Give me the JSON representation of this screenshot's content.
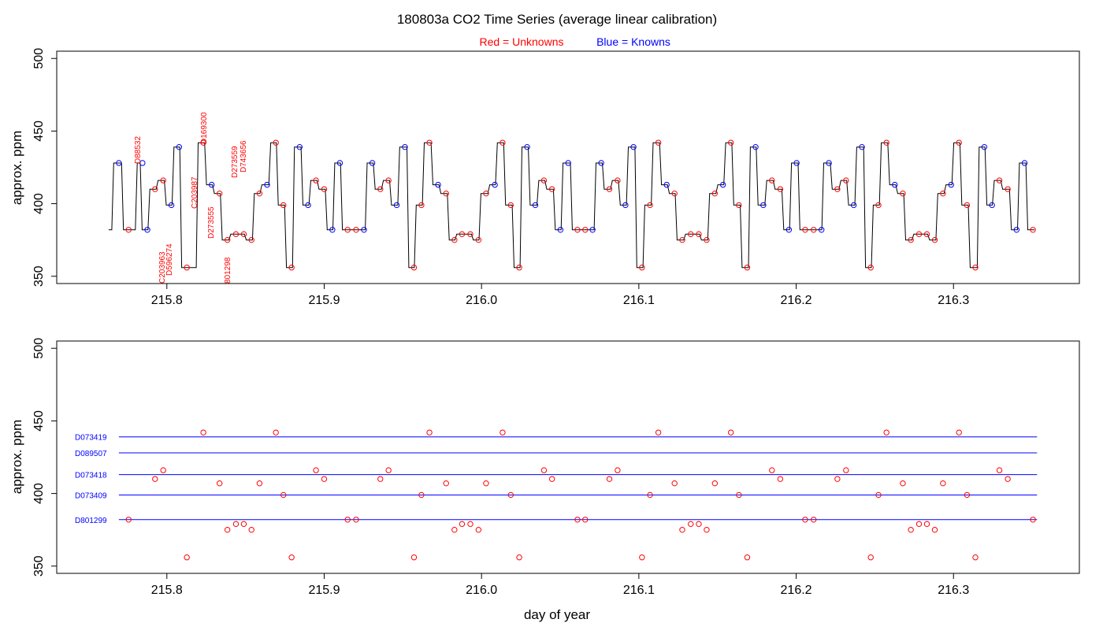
{
  "title": "180803a   CO2 Time Series (average linear calibration)",
  "legend": {
    "unknowns": "Red = Unknowns",
    "knowns": "Blue = Knowns",
    "unknowns_color": "#ff0000",
    "knowns_color": "#0000ff"
  },
  "chart_data": [
    {
      "type": "line",
      "panel": "top",
      "title": "",
      "xlabel": "",
      "ylabel": "approx. ppm",
      "xlim": [
        215.73,
        216.38
      ],
      "ylim": [
        345,
        505
      ],
      "xticks": [
        215.8,
        215.9,
        216.0,
        216.1,
        216.2,
        216.3
      ],
      "xtick_labels": [
        "215.8",
        "215.9",
        "216.0",
        "216.1",
        "216.2",
        "216.3"
      ],
      "yticks": [
        350,
        400,
        450,
        500
      ],
      "ytick_labels": [
        "350",
        "400",
        "450",
        "500"
      ],
      "grid": false,
      "colors": {
        "line": "#000000",
        "unknown": "#ff0000",
        "known": "#0000ff"
      },
      "series": [
        {
          "name": "Unknowns",
          "points": [
            [
              215.7757,
              382
            ],
            [
              215.7925,
              410
            ],
            [
              215.7977,
              416
            ],
            [
              215.8127,
              356
            ],
            [
              215.8232,
              442
            ],
            [
              215.8335,
              407
            ],
            [
              215.8385,
              375
            ],
            [
              215.8439,
              379
            ],
            [
              215.8489,
              379
            ],
            [
              215.8538,
              375
            ],
            [
              215.8589,
              407
            ],
            [
              215.8693,
              442
            ],
            [
              215.8741,
              399
            ],
            [
              215.8793,
              356
            ],
            [
              215.8948,
              416
            ],
            [
              215.9,
              410
            ],
            [
              215.9149,
              382
            ],
            [
              215.9203,
              382
            ],
            [
              215.9357,
              410
            ],
            [
              215.9409,
              416
            ],
            [
              215.9571,
              356
            ],
            [
              215.9618,
              399
            ],
            [
              215.9669,
              442
            ],
            [
              215.9775,
              407
            ],
            [
              215.9828,
              375
            ],
            [
              215.9876,
              379
            ],
            [
              215.9929,
              379
            ],
            [
              215.9981,
              375
            ],
            [
              216.0029,
              407
            ],
            [
              216.0134,
              442
            ],
            [
              216.0186,
              399
            ],
            [
              216.024,
              356
            ],
            [
              216.0397,
              416
            ],
            [
              216.0448,
              410
            ],
            [
              216.061,
              382
            ],
            [
              216.0659,
              382
            ],
            [
              216.0813,
              410
            ],
            [
              216.0865,
              416
            ],
            [
              216.102,
              356
            ],
            [
              216.1071,
              399
            ],
            [
              216.1124,
              442
            ],
            [
              216.1227,
              407
            ],
            [
              216.1276,
              375
            ],
            [
              216.133,
              379
            ],
            [
              216.1381,
              379
            ],
            [
              216.1431,
              375
            ],
            [
              216.1483,
              407
            ],
            [
              216.1585,
              442
            ],
            [
              216.1636,
              399
            ],
            [
              216.1689,
              356
            ],
            [
              216.1846,
              416
            ],
            [
              216.1899,
              410
            ],
            [
              216.2057,
              382
            ],
            [
              216.2111,
              382
            ],
            [
              216.2262,
              410
            ],
            [
              216.2317,
              416
            ],
            [
              216.2474,
              356
            ],
            [
              216.2523,
              399
            ],
            [
              216.2574,
              442
            ],
            [
              216.2678,
              407
            ],
            [
              216.2729,
              375
            ],
            [
              216.2781,
              379
            ],
            [
              216.2831,
              379
            ],
            [
              216.2881,
              375
            ],
            [
              216.2933,
              407
            ],
            [
              216.3035,
              442
            ],
            [
              216.3086,
              399
            ],
            [
              216.3139,
              356
            ],
            [
              216.3292,
              416
            ],
            [
              216.3345,
              410
            ],
            [
              216.3505,
              382
            ]
          ]
        },
        {
          "name": "Knowns",
          "points": [
            [
              215.7695,
              428
            ],
            [
              215.7845,
              428
            ],
            [
              215.7876,
              382
            ],
            [
              215.8029,
              399
            ],
            [
              215.8078,
              439
            ],
            [
              215.8285,
              413
            ],
            [
              215.8637,
              413
            ],
            [
              215.8844,
              439
            ],
            [
              215.8898,
              399
            ],
            [
              215.9052,
              382
            ],
            [
              215.91,
              428
            ],
            [
              215.9253,
              382
            ],
            [
              215.9306,
              428
            ],
            [
              215.9461,
              399
            ],
            [
              215.9513,
              439
            ],
            [
              215.9724,
              413
            ],
            [
              216.0085,
              413
            ],
            [
              216.029,
              439
            ],
            [
              216.0342,
              399
            ],
            [
              216.0502,
              382
            ],
            [
              216.0551,
              428
            ],
            [
              216.0706,
              382
            ],
            [
              216.0761,
              428
            ],
            [
              216.0915,
              399
            ],
            [
              216.0966,
              439
            ],
            [
              216.1177,
              413
            ],
            [
              216.1535,
              413
            ],
            [
              216.1742,
              439
            ],
            [
              216.1791,
              399
            ],
            [
              216.1954,
              382
            ],
            [
              216.2003,
              428
            ],
            [
              216.2161,
              382
            ],
            [
              216.2208,
              428
            ],
            [
              216.2366,
              399
            ],
            [
              216.2418,
              439
            ],
            [
              216.2627,
              413
            ],
            [
              216.2985,
              413
            ],
            [
              216.3196,
              439
            ],
            [
              216.3245,
              399
            ],
            [
              216.3401,
              382
            ],
            [
              216.3452,
              428
            ]
          ]
        }
      ],
      "annotations": [
        "D88532",
        "D169300",
        "D273559",
        "D743656",
        "C203987",
        "D273555",
        "C203963",
        "D596274",
        "801298"
      ]
    },
    {
      "type": "scatter",
      "panel": "bottom",
      "title": "",
      "xlabel": "day of year",
      "ylabel": "approx. ppm",
      "xlim": [
        215.73,
        216.38
      ],
      "ylim": [
        345,
        505
      ],
      "xticks": [
        215.8,
        215.9,
        216.0,
        216.1,
        216.2,
        216.3
      ],
      "xtick_labels": [
        "215.8",
        "215.9",
        "216.0",
        "216.1",
        "216.2",
        "216.3"
      ],
      "yticks": [
        350,
        400,
        450,
        500
      ],
      "ytick_labels": [
        "350",
        "400",
        "450",
        "500"
      ],
      "grid": false,
      "reference_lines": [
        {
          "name": "D073419",
          "value": 439
        },
        {
          "name": "D089507",
          "value": 428
        },
        {
          "name": "D073418",
          "value": 413
        },
        {
          "name": "D073409",
          "value": 399
        },
        {
          "name": "D801299",
          "value": 382
        }
      ],
      "reference_x_range": [
        215.7695,
        216.3531
      ],
      "series": [
        {
          "name": "Unknowns",
          "points_ref": "top.Unknowns"
        }
      ]
    }
  ],
  "top_labels": {
    "a1": "D88532",
    "a2": "D169300",
    "a3": "D273559",
    "a4": "D743656",
    "a5": "C203987",
    "a6": "D273555",
    "a7": "C203963",
    "a8": "D596274",
    "a9": "801298"
  }
}
